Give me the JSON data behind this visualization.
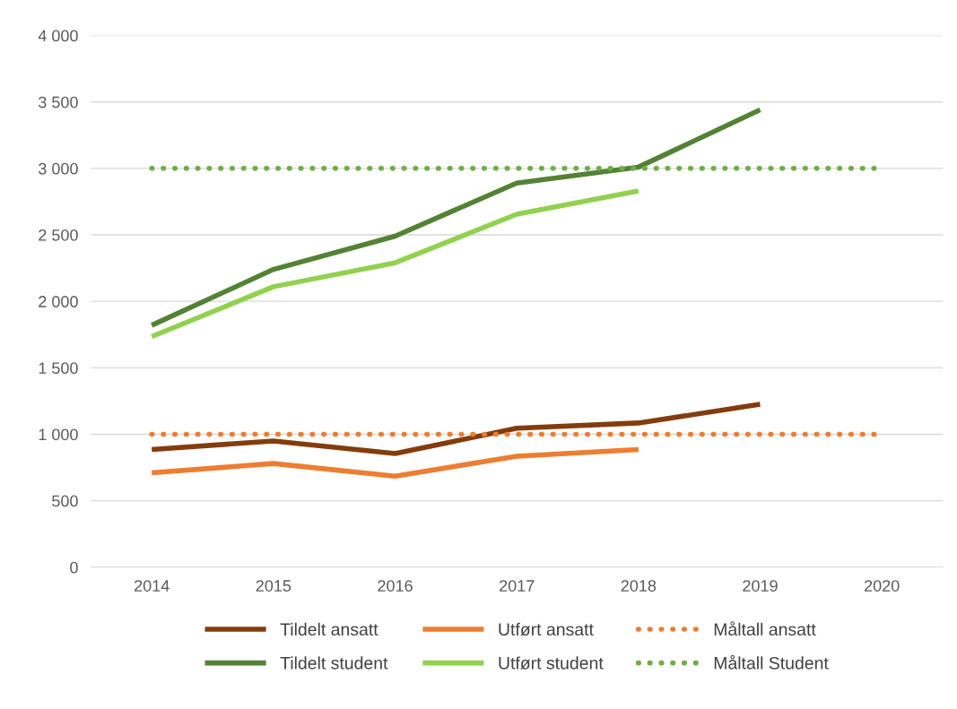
{
  "chart_data": {
    "type": "line",
    "categories": [
      "2014",
      "2015",
      "2016",
      "2017",
      "2018",
      "2019",
      "2020"
    ],
    "series": [
      {
        "name": "Tildelt ansatt",
        "color": "#843c0c",
        "line_style": "solid",
        "values": [
          885,
          950,
          855,
          1045,
          1085,
          1225,
          null
        ]
      },
      {
        "name": "Utført ansatt",
        "color": "#ed7d31",
        "line_style": "solid",
        "values": [
          710,
          780,
          685,
          835,
          885,
          null,
          null
        ]
      },
      {
        "name": "Måltall ansatt",
        "color": "#ed7d31",
        "line_style": "dotted",
        "values": [
          1000,
          1000,
          1000,
          1000,
          1000,
          1000,
          1000
        ]
      },
      {
        "name": "Tildelt student",
        "color": "#548235",
        "line_style": "solid",
        "values": [
          1820,
          2240,
          2490,
          2890,
          3010,
          3440,
          null
        ]
      },
      {
        "name": "Utført student",
        "color": "#92d050",
        "line_style": "solid",
        "values": [
          1735,
          2110,
          2290,
          2655,
          2830,
          null,
          null
        ]
      },
      {
        "name": "Måltall Student",
        "color": "#70ad47",
        "line_style": "dotted",
        "values": [
          3000,
          3000,
          3000,
          3000,
          3000,
          3000,
          3000
        ]
      }
    ],
    "ylim": [
      0,
      4000
    ],
    "yticks": [
      0,
      500,
      {
        "value": 1000,
        "label": "1 000"
      },
      {
        "value": 1500,
        "label": "1 500"
      },
      {
        "value": 2000,
        "label": "2 000"
      },
      {
        "value": 2500,
        "label": "2 500"
      },
      {
        "value": 3000,
        "label": "3 000"
      },
      {
        "value": 3500,
        "label": "3 500"
      },
      {
        "value": 4000,
        "label": "4 000"
      }
    ],
    "grid": "y",
    "legend": "bottom",
    "marker": "none"
  }
}
